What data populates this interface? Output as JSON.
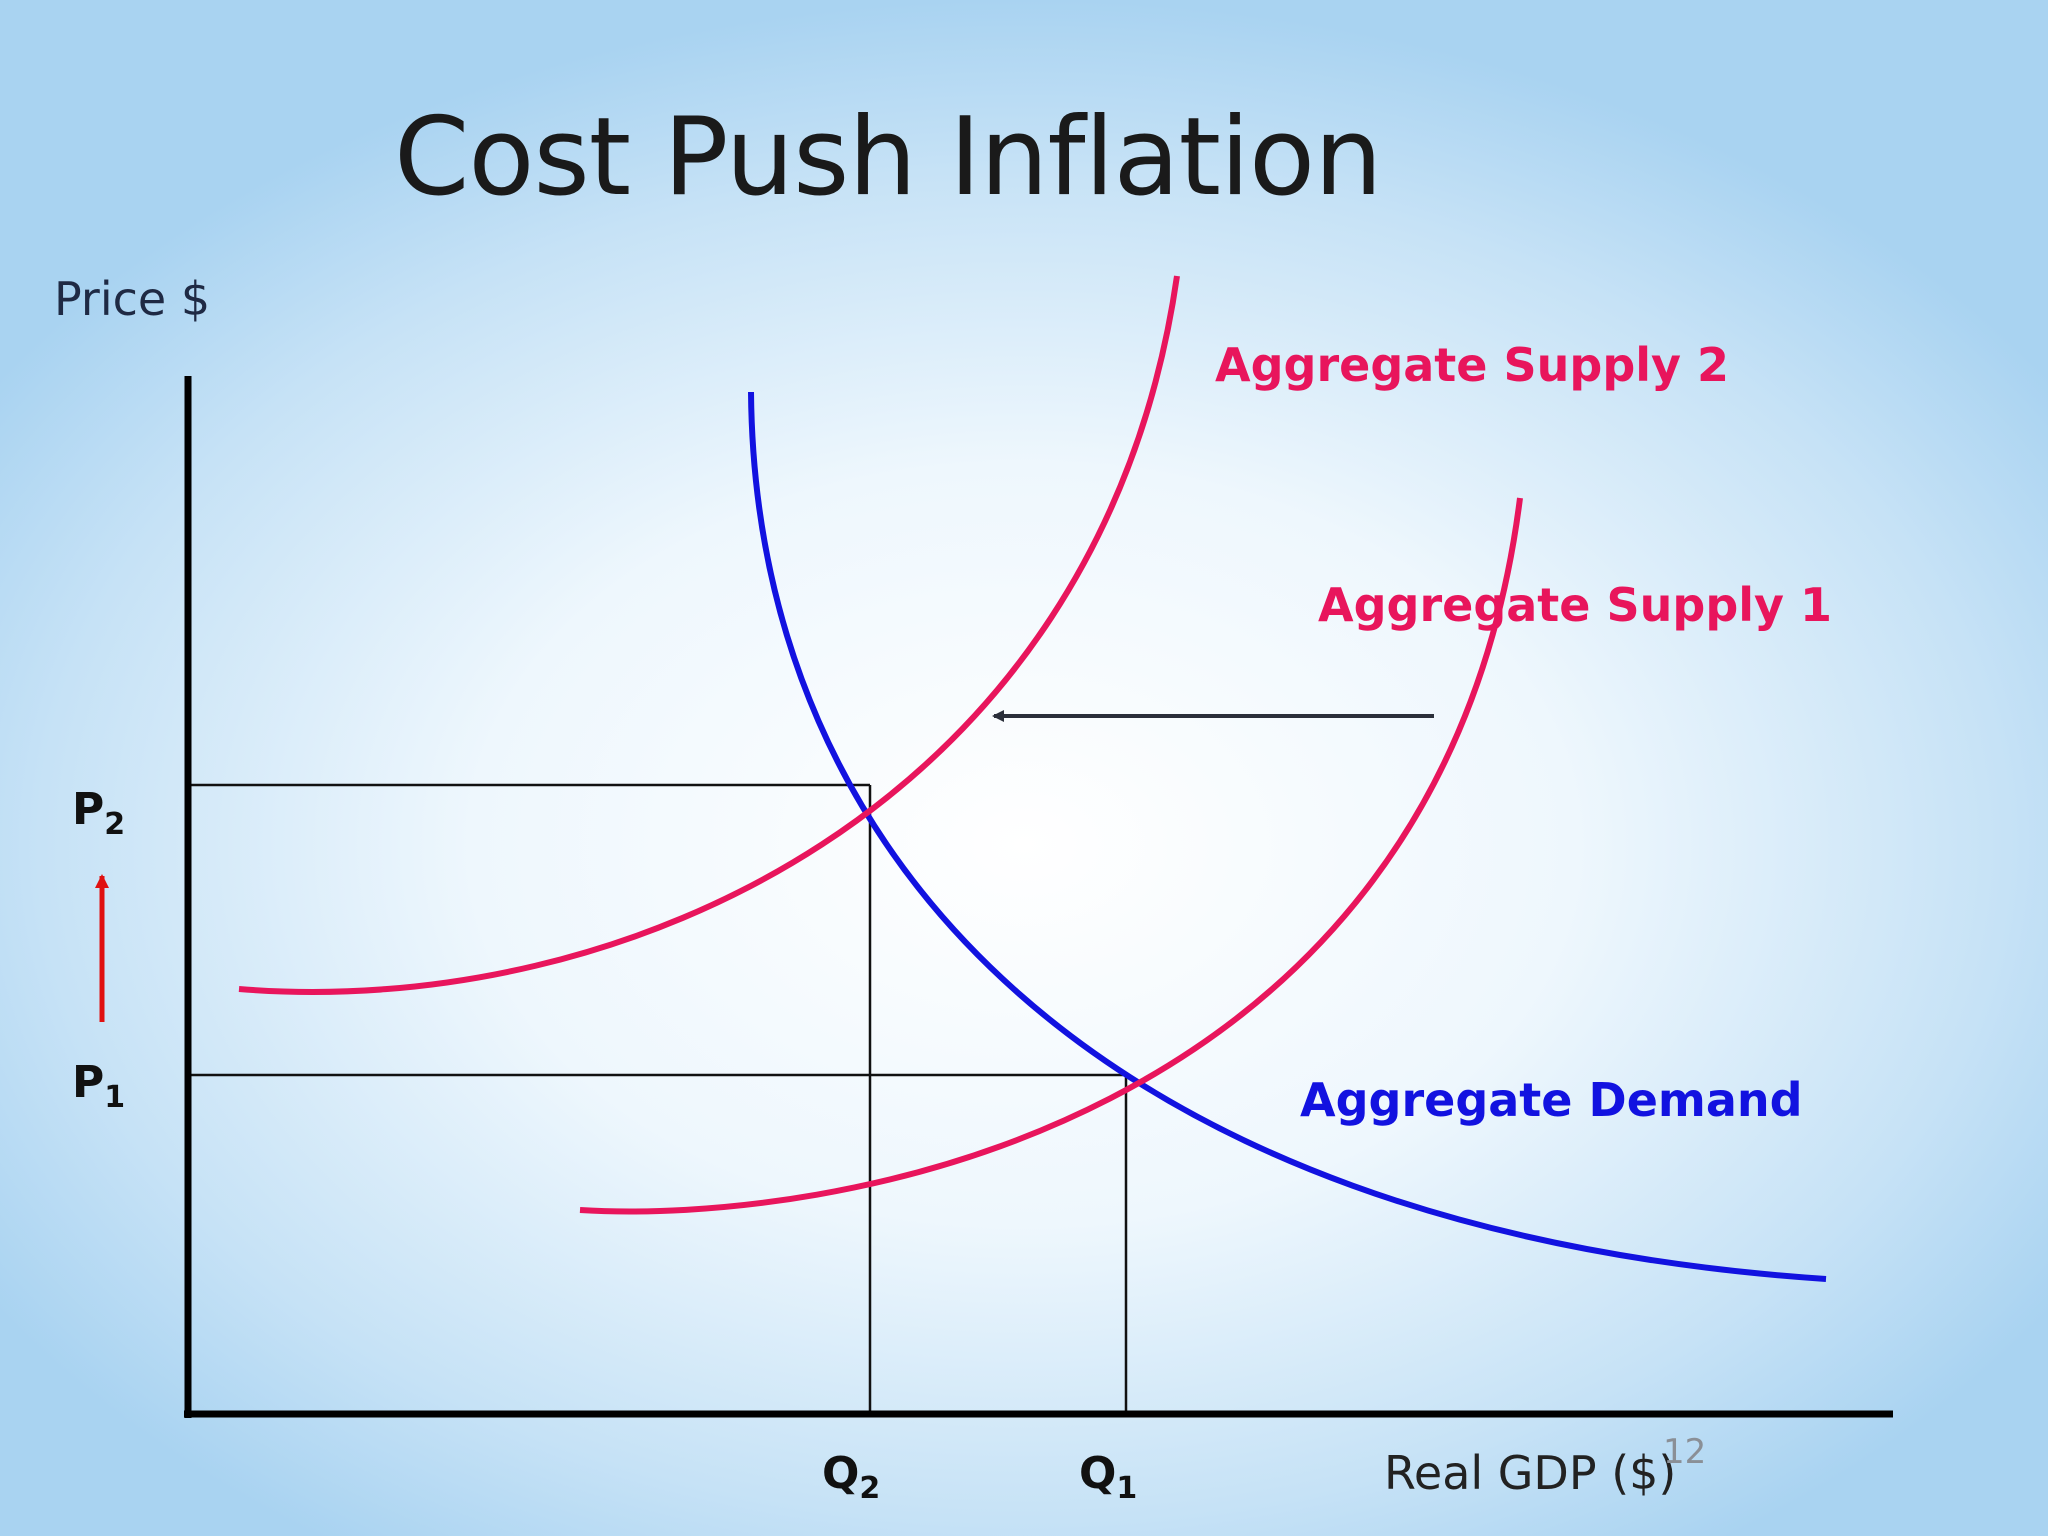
{
  "title": "Cost Push Inflation",
  "y_axis_label": "Price $",
  "x_axis_label": "Real GDP ($)",
  "slide_number": "12",
  "curves": {
    "aggregate_supply_2": {
      "label": "Aggregate Supply 2",
      "color": "#e8155c"
    },
    "aggregate_supply_1": {
      "label": "Aggregate Supply 1",
      "color": "#e8155c"
    },
    "aggregate_demand": {
      "label": "Aggregate Demand",
      "color": "#1212e0"
    }
  },
  "price_levels": {
    "p2": {
      "letter": "P",
      "sub": "2"
    },
    "p1": {
      "letter": "P",
      "sub": "1"
    }
  },
  "quantities": {
    "q2": {
      "letter": "Q",
      "sub": "2"
    },
    "q1": {
      "letter": "Q",
      "sub": "1"
    }
  },
  "arrows": {
    "supply_shift": {
      "direction": "left",
      "color": "#2b2f3a"
    },
    "price_rise": {
      "direction": "up",
      "color": "#e01010"
    }
  }
}
